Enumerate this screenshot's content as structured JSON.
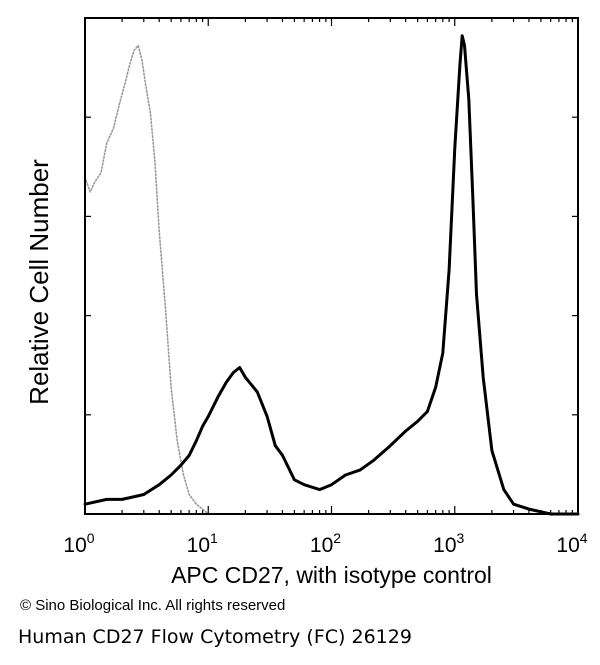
{
  "chart_data": {
    "type": "line",
    "title": "",
    "xlabel": "APC CD27, with isotype control",
    "ylabel": "Relative Cell Number",
    "xscale": "log",
    "xlim": [
      1,
      10000
    ],
    "ylim": [
      0,
      100
    ],
    "x_ticks": [
      {
        "value": 1,
        "base": "10",
        "exp": "0"
      },
      {
        "value": 10,
        "base": "10",
        "exp": "1"
      },
      {
        "value": 100,
        "base": "10",
        "exp": "2"
      },
      {
        "value": 1000,
        "base": "10",
        "exp": "3"
      },
      {
        "value": 10000,
        "base": "10",
        "exp": "4"
      }
    ],
    "series": [
      {
        "name": "isotype control",
        "style": "dotted",
        "color": "#9a9a9a",
        "x": [
          1.0,
          1.1,
          1.2,
          1.35,
          1.5,
          1.7,
          1.9,
          2.1,
          2.3,
          2.5,
          2.7,
          2.9,
          3.1,
          3.4,
          3.7,
          4.0,
          4.5,
          5.0,
          5.6,
          6.3,
          7.0,
          8.0,
          9.0,
          10.0,
          11.0
        ],
        "y": [
          69,
          66,
          68,
          70,
          76,
          79,
          84,
          88,
          92,
          95,
          96,
          93,
          88,
          82,
          72,
          58,
          42,
          26,
          15,
          8,
          4,
          2,
          1,
          0,
          0
        ]
      },
      {
        "name": "CD27",
        "style": "solid",
        "color": "#000000",
        "x": [
          1.0,
          1.5,
          2.0,
          3.0,
          4.0,
          5.0,
          6.0,
          7.0,
          8.0,
          9.0,
          10.0,
          12.0,
          14.0,
          16.0,
          18.0,
          20.0,
          25.0,
          30.0,
          35.0,
          40.0,
          50.0,
          60.0,
          80.0,
          100.0,
          130.0,
          170.0,
          220.0,
          300.0,
          400.0,
          500.0,
          600.0,
          700.0,
          800.0,
          900.0,
          1000.0,
          1100.0,
          1150.0,
          1200.0,
          1300.0,
          1400.0,
          1500.0,
          1700.0,
          2000.0,
          2500.0,
          3000.0,
          4000.0,
          6000.0,
          10000.0
        ],
        "y": [
          2,
          3,
          3,
          4,
          6,
          8,
          10,
          12,
          15,
          18,
          20,
          24,
          27,
          29,
          30,
          28,
          25,
          20,
          14,
          12,
          7,
          6,
          5,
          6,
          8,
          9,
          11,
          14,
          17,
          19,
          21,
          26,
          33,
          50,
          75,
          92,
          98,
          96,
          85,
          65,
          45,
          28,
          13,
          5,
          2,
          1,
          0,
          0
        ]
      }
    ]
  },
  "copyright": "© Sino Biological Inc. All rights reserved",
  "caption": "Human CD27 Flow Cytometry (FC) 26129"
}
